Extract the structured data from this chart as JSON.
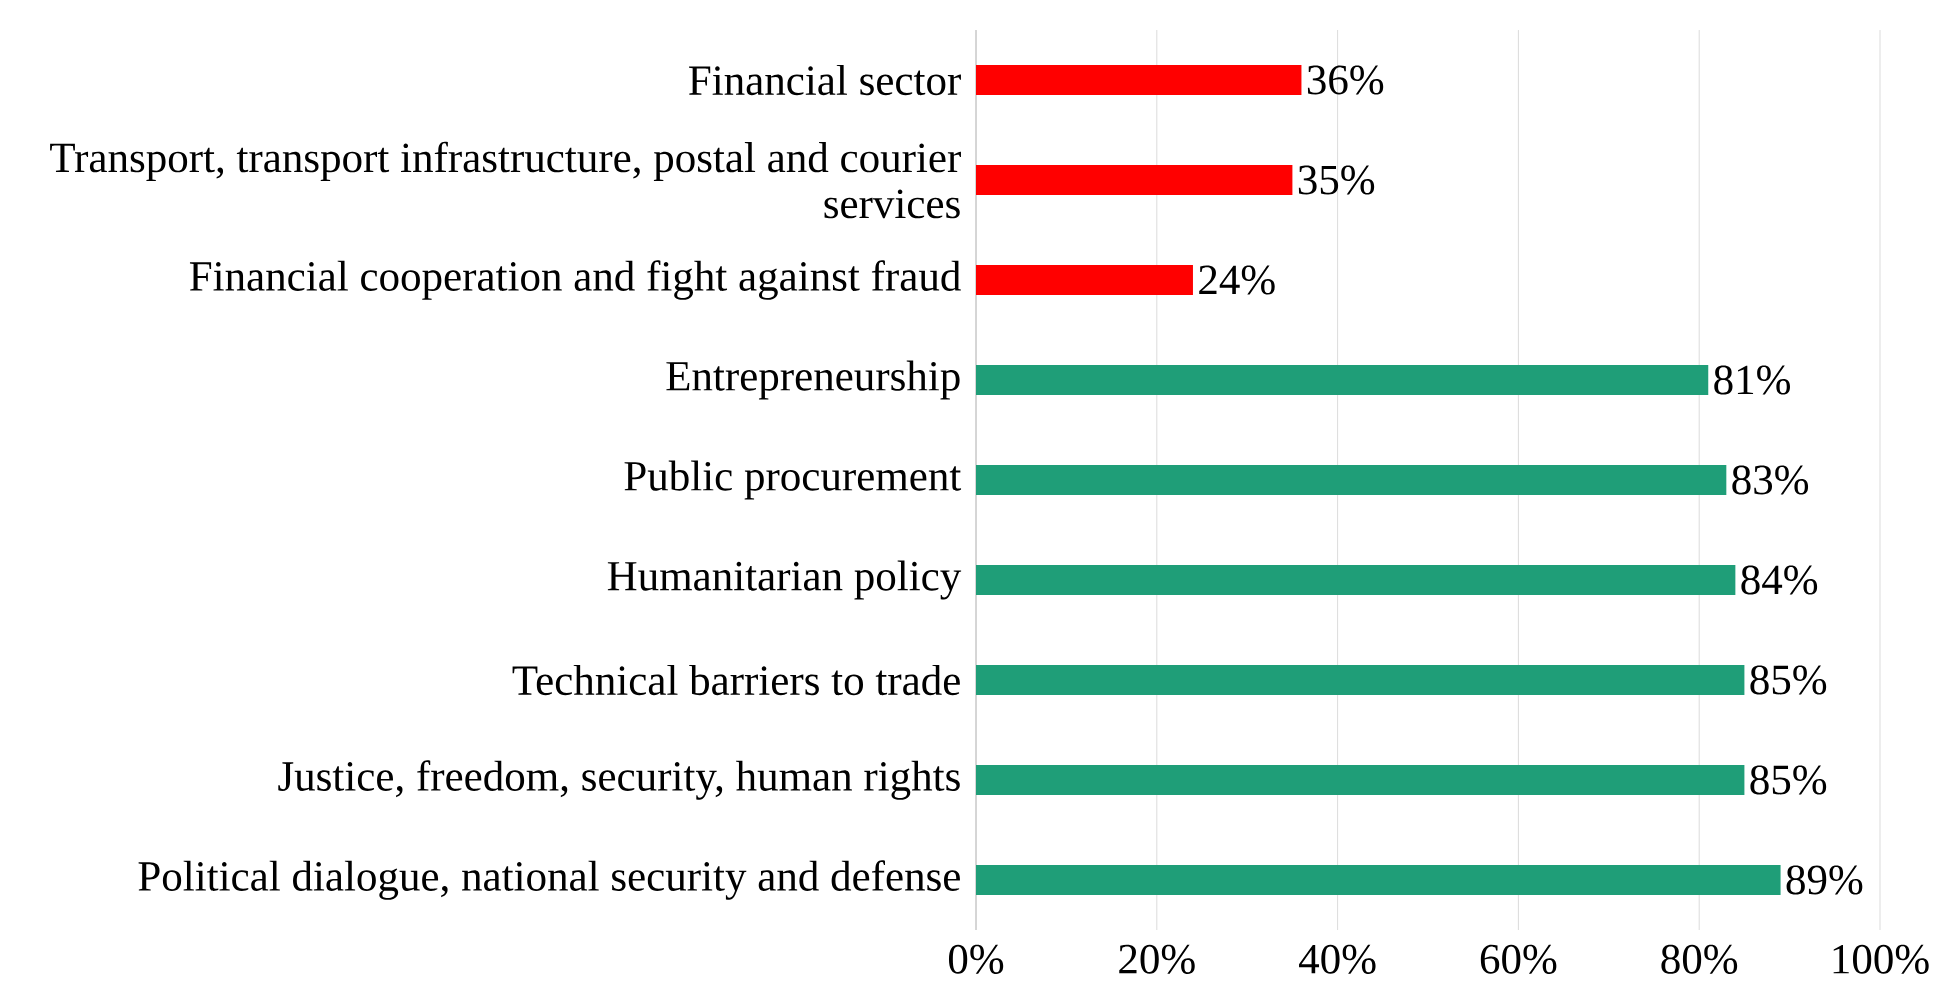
{
  "chart_data": {
    "type": "bar",
    "orientation": "horizontal",
    "categories": [
      "Financial sector",
      "Transport, transport infrastructure, postal and courier services",
      "Financial cooperation and fight against fraud",
      "Entrepreneurship",
      "Public procurement",
      "Humanitarian policy",
      "Technical barriers to trade",
      "Justice, freedom, security, human rights",
      "Political dialogue, national security and defense"
    ],
    "values": [
      36,
      35,
      24,
      81,
      83,
      84,
      85,
      85,
      89
    ],
    "value_labels": [
      "36%",
      "35%",
      "24%",
      "81%",
      "83%",
      "84%",
      "85%",
      "85%",
      "89%"
    ],
    "colors": [
      "#ff0000",
      "#ff0000",
      "#ff0000",
      "#1f9e78",
      "#1f9e78",
      "#1f9e78",
      "#1f9e78",
      "#1f9e78",
      "#1f9e78"
    ],
    "xlim": [
      0,
      100
    ],
    "xticks": [
      {
        "value": 0,
        "label": "0%"
      },
      {
        "value": 20,
        "label": "20%"
      },
      {
        "value": 40,
        "label": "40%"
      },
      {
        "value": 60,
        "label": "60%"
      },
      {
        "value": 80,
        "label": "80%"
      },
      {
        "value": 100,
        "label": "100%"
      }
    ],
    "grid": "x"
  }
}
